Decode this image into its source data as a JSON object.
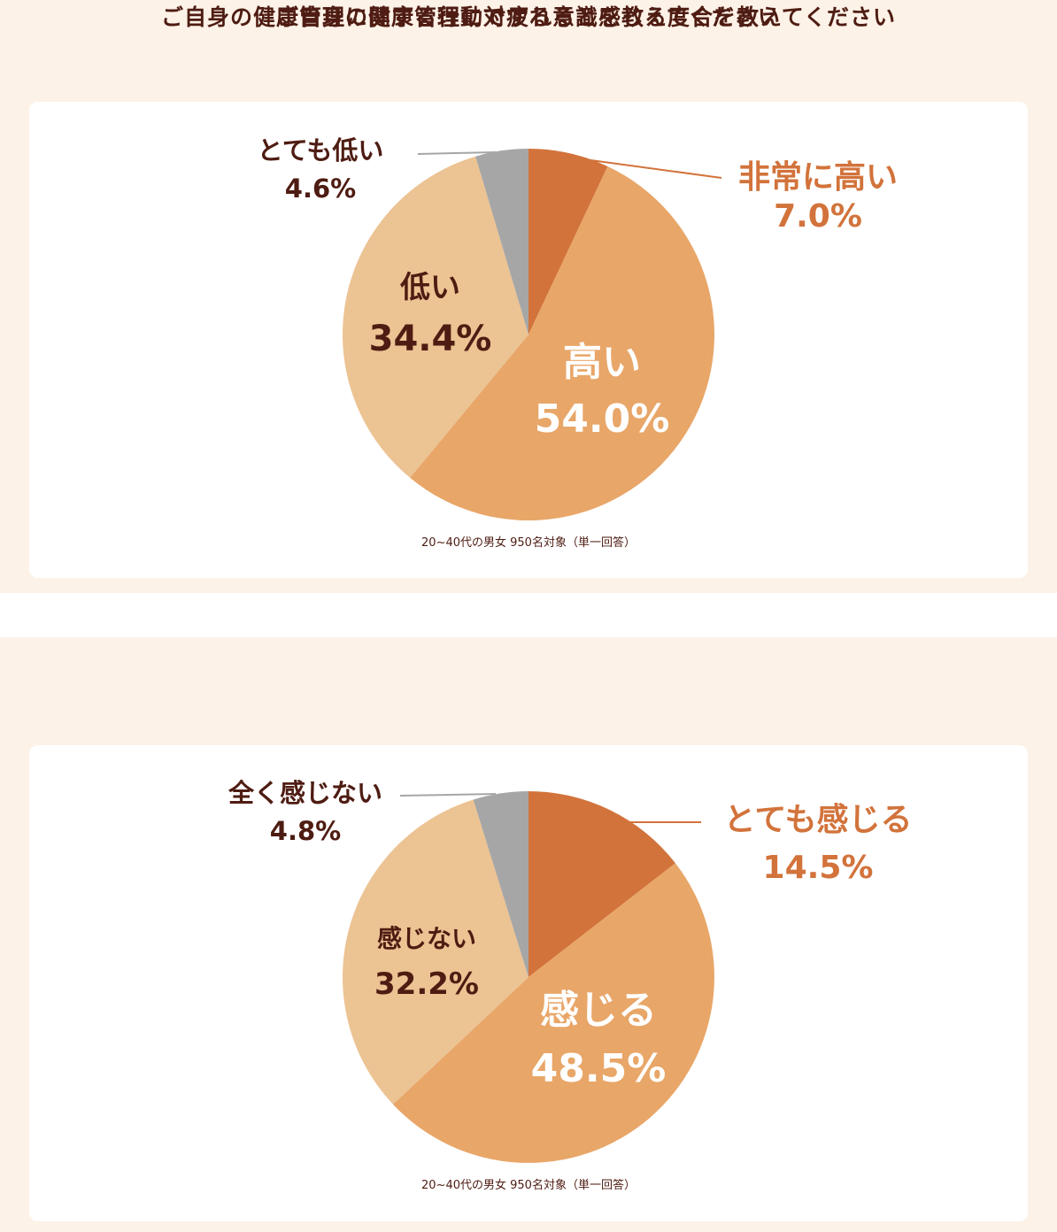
{
  "chart_data": [
    {
      "type": "pie",
      "title": "ご自身の健康管理に対する意識を教えてください",
      "note": "20~40代の男女 950名対象（単一回答）",
      "slices": [
        {
          "label": "非常に高い",
          "value": 7.0,
          "value_label": "7.0%",
          "color": "#d2733b"
        },
        {
          "label": "高い",
          "value": 54.0,
          "value_label": "54.0%",
          "color": "#e8a668"
        },
        {
          "label": "低い",
          "value": 34.4,
          "value_label": "34.4%",
          "color": "#ecc393"
        },
        {
          "label": "とても低い",
          "value": 4.6,
          "value_label": "4.6%",
          "color": "#a6a6a6"
        }
      ]
    },
    {
      "type": "pie",
      "title": "ご自身の健康管理に関する行動で疲れると感じる度合を教えてください",
      "note": "20~40代の男女 950名対象（単一回答）",
      "slices": [
        {
          "label": "とても感じる",
          "value": 14.5,
          "value_label": "14.5%",
          "color": "#d2733b"
        },
        {
          "label": "感じる",
          "value": 48.5,
          "value_label": "48.5%",
          "color": "#e8a668"
        },
        {
          "label": "感じない",
          "value": 32.2,
          "value_label": "32.2%",
          "color": "#ecc393"
        },
        {
          "label": "全く感じない",
          "value": 4.8,
          "value_label": "4.8%",
          "color": "#a6a6a6"
        }
      ]
    }
  ]
}
